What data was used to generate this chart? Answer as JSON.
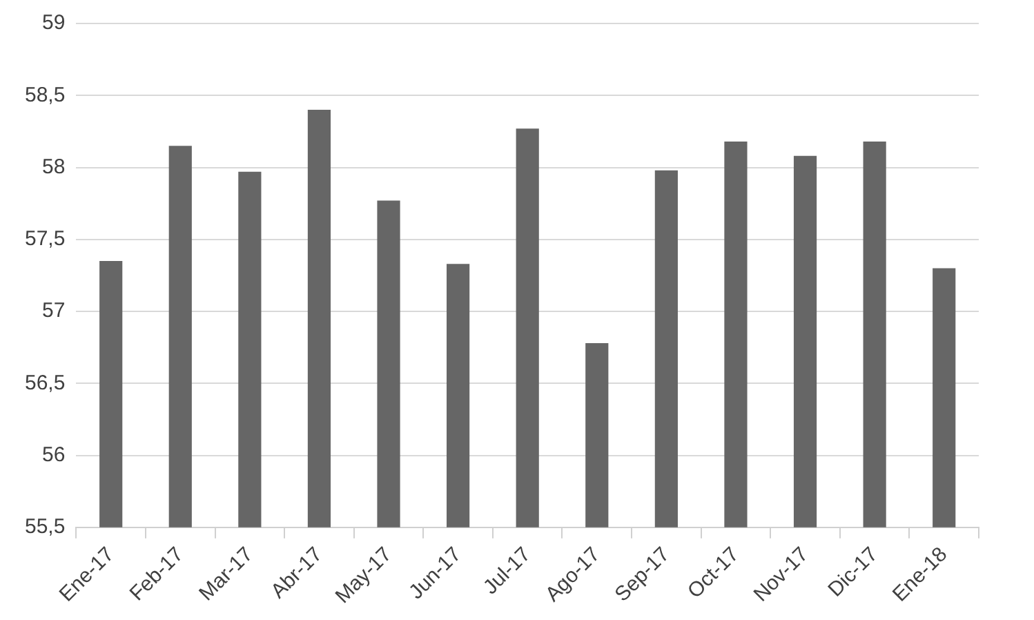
{
  "chart_data": {
    "type": "bar",
    "categories": [
      "Ene-17",
      "Feb-17",
      "Mar-17",
      "Abr-17",
      "May-17",
      "Jun-17",
      "Jul-17",
      "Ago-17",
      "Sep-17",
      "Oct-17",
      "Nov-17",
      "Dic-17",
      "Ene-18"
    ],
    "values": [
      57.35,
      58.15,
      57.97,
      58.4,
      57.77,
      57.33,
      58.27,
      56.78,
      57.98,
      58.18,
      58.08,
      58.18,
      57.3
    ],
    "color": "#666666",
    "ylim": [
      55.5,
      59
    ],
    "yticks": [
      {
        "value": 55.5,
        "label": "55,5"
      },
      56,
      {
        "value": 56.5,
        "label": "56,5"
      },
      57,
      {
        "value": 57.5,
        "label": "57,5"
      },
      58,
      {
        "value": 58.5,
        "label": "58,5"
      },
      59
    ],
    "grid": "y",
    "legend": false
  }
}
